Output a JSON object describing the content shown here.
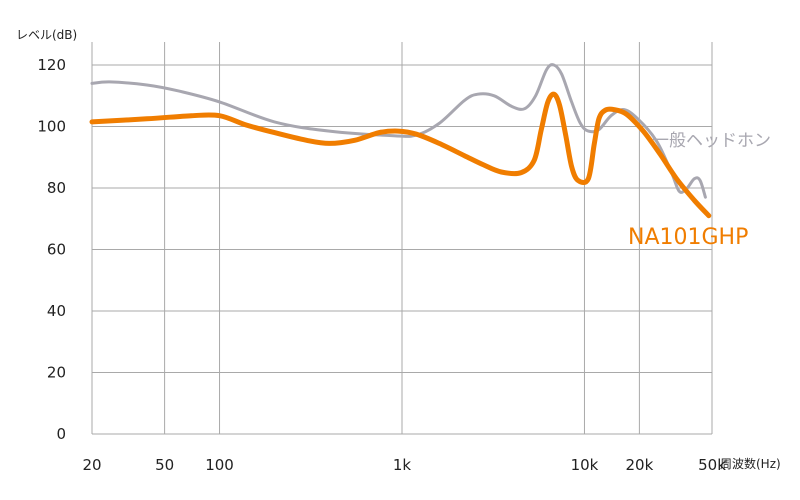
{
  "chart_data": {
    "type": "line",
    "title": "",
    "ylabel": "レベル(dB)",
    "xlabel": "周波数(Hz)",
    "x_scale": "log",
    "xlim": [
      20,
      50000
    ],
    "ylim": [
      0,
      120
    ],
    "x_ticks": [
      20,
      50,
      100,
      1000,
      10000,
      20000,
      50000
    ],
    "x_tick_labels": [
      "20",
      "50",
      "100",
      "1k",
      "10k",
      "20k",
      "50k"
    ],
    "y_ticks": [
      0,
      20,
      40,
      60,
      80,
      100,
      120
    ],
    "y_tick_labels": [
      "0",
      "20",
      "40",
      "60",
      "80",
      "100",
      "120"
    ],
    "grid": true,
    "series": [
      {
        "name": "一般ヘッドホン",
        "color": "#a8a7b0",
        "points": [
          [
            20,
            114
          ],
          [
            25,
            114.5
          ],
          [
            40,
            113.5
          ],
          [
            60,
            111.5
          ],
          [
            100,
            108
          ],
          [
            200,
            101.5
          ],
          [
            400,
            98.5
          ],
          [
            900,
            97
          ],
          [
            1200,
            97.2
          ],
          [
            1600,
            101
          ],
          [
            2200,
            108.5
          ],
          [
            2600,
            110.5
          ],
          [
            3200,
            110
          ],
          [
            4000,
            106.5
          ],
          [
            4700,
            105.8
          ],
          [
            5400,
            110
          ],
          [
            6200,
            118.5
          ],
          [
            6800,
            120
          ],
          [
            7500,
            117
          ],
          [
            8500,
            108
          ],
          [
            9500,
            101
          ],
          [
            10500,
            98.5
          ],
          [
            12000,
            99
          ],
          [
            14000,
            103.5
          ],
          [
            16500,
            105.5
          ],
          [
            20000,
            102
          ],
          [
            25000,
            95
          ],
          [
            30000,
            85
          ],
          [
            33000,
            79
          ],
          [
            36000,
            79.5
          ],
          [
            40000,
            83
          ],
          [
            43000,
            82.5
          ],
          [
            46000,
            77
          ]
        ]
      },
      {
        "name": "NA101GHP",
        "color": "#f07d00",
        "points": [
          [
            20,
            101.5
          ],
          [
            40,
            102.5
          ],
          [
            70,
            103.5
          ],
          [
            100,
            103.5
          ],
          [
            140,
            100.5
          ],
          [
            200,
            98
          ],
          [
            300,
            95.5
          ],
          [
            400,
            94.5
          ],
          [
            550,
            95.5
          ],
          [
            750,
            98
          ],
          [
            950,
            98.5
          ],
          [
            1200,
            97.5
          ],
          [
            1600,
            94.5
          ],
          [
            2200,
            90.5
          ],
          [
            2800,
            87.5
          ],
          [
            3500,
            85.2
          ],
          [
            4500,
            85
          ],
          [
            5300,
            89
          ],
          [
            5800,
            99
          ],
          [
            6300,
            108
          ],
          [
            6800,
            110.5
          ],
          [
            7300,
            107
          ],
          [
            7900,
            97
          ],
          [
            8500,
            87
          ],
          [
            9200,
            82.5
          ],
          [
            10500,
            83
          ],
          [
            11300,
            94
          ],
          [
            12000,
            102.5
          ],
          [
            13000,
            105.3
          ],
          [
            14500,
            105.5
          ],
          [
            17000,
            104
          ],
          [
            21000,
            98.5
          ],
          [
            26000,
            91
          ],
          [
            32000,
            83
          ],
          [
            40000,
            76
          ],
          [
            48000,
            71
          ]
        ]
      }
    ]
  }
}
